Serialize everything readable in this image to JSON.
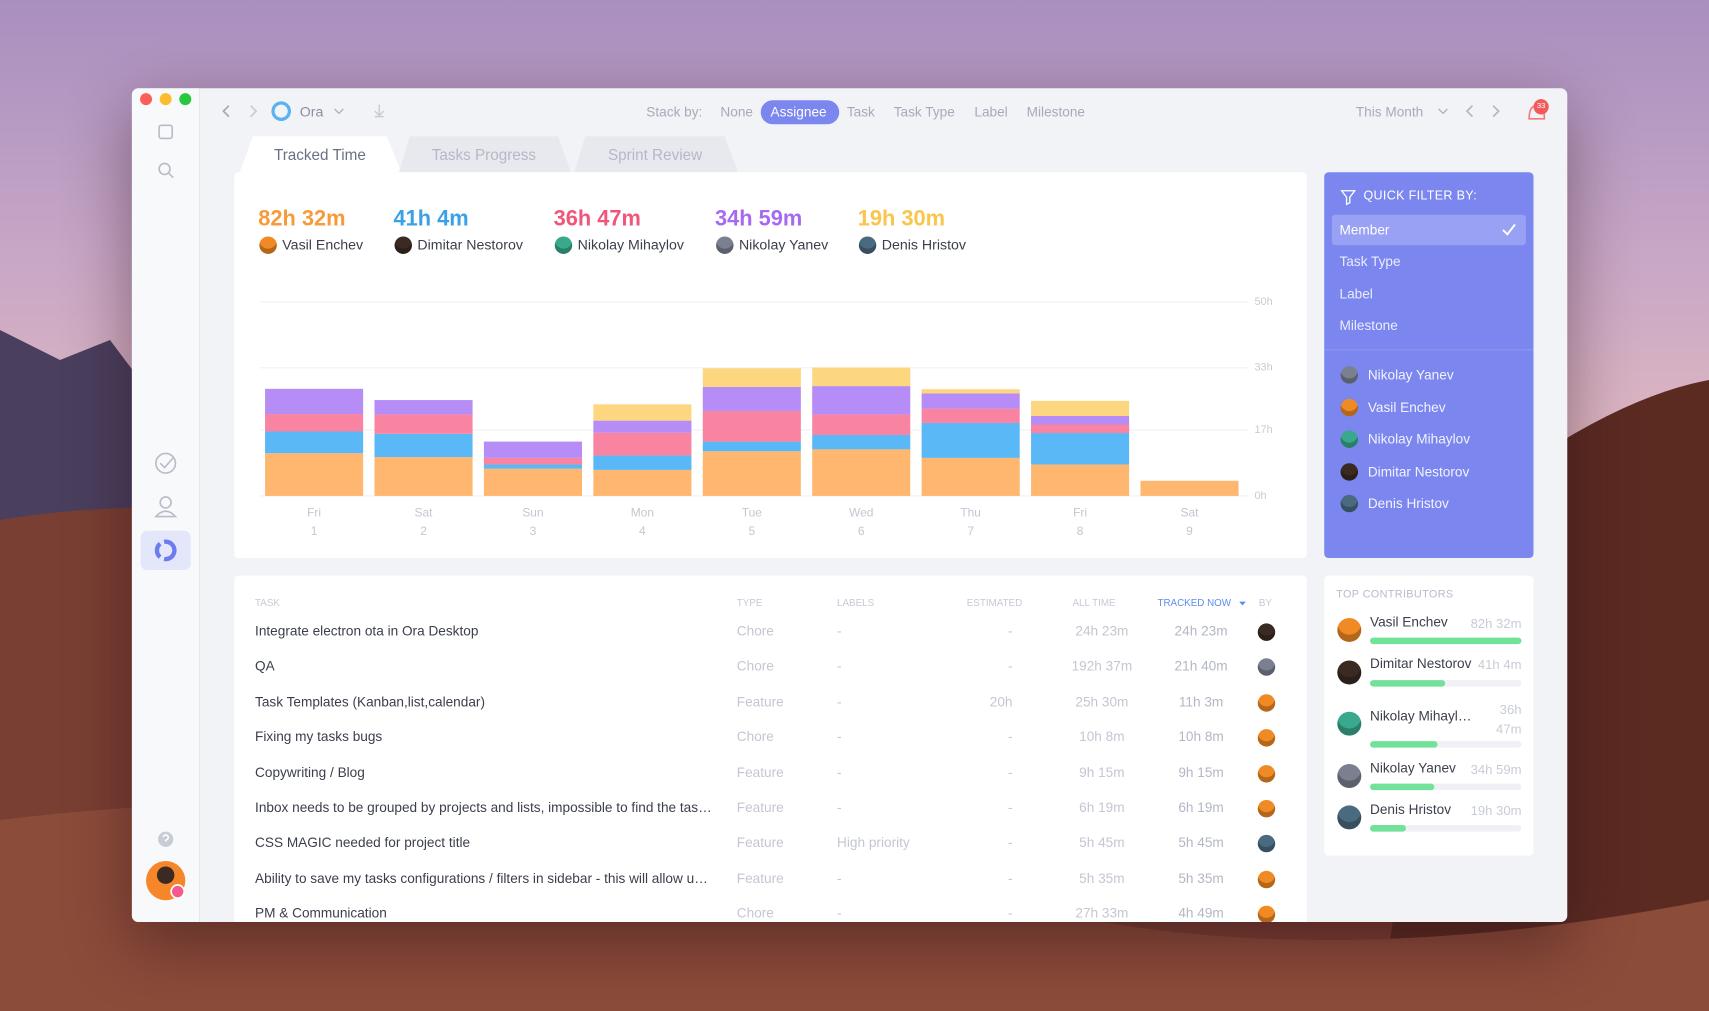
{
  "toolbar": {
    "app": "Ora",
    "stack_by_label": "Stack by:",
    "stack_options": [
      "None",
      "Assignee",
      "Task",
      "Task Type",
      "Label",
      "Milestone"
    ],
    "stack_selected": 1,
    "range": "This Month",
    "notifications": "33"
  },
  "tabs": [
    "Tracked Time",
    "Tasks Progress",
    "Sprint Review"
  ],
  "totals": [
    {
      "time": "82h 32m",
      "name": "Vasil Enchev",
      "color": "#f89a3a"
    },
    {
      "time": "41h 4m",
      "name": "Dimitar Nestorov",
      "color": "#3aa0e8"
    },
    {
      "time": "36h 47m",
      "name": "Nikolay Mihaylov",
      "color": "#f0567a"
    },
    {
      "time": "34h 59m",
      "name": "Nikolay Yanev",
      "color": "#a66af0"
    },
    {
      "time": "19h 30m",
      "name": "Denis Hristov",
      "color": "#f9c54a"
    }
  ],
  "chart_data": {
    "type": "stacked_bar",
    "categories": [
      "Fri",
      "Sat",
      "Sun",
      "Mon",
      "Tue",
      "Wed",
      "Thu",
      "Fri",
      "Sat"
    ],
    "category_dates": [
      "1",
      "2",
      "3",
      "4",
      "5",
      "6",
      "7",
      "8",
      "9"
    ],
    "series": [
      {
        "color": "#ffb770",
        "values": [
          11,
          10,
          7,
          6.7,
          11.5,
          12,
          9.8,
          8.1,
          3.9
        ]
      },
      {
        "color": "#5ab8f7",
        "values": [
          5.6,
          6,
          1.1,
          3.7,
          2.5,
          3.7,
          9,
          8.1,
          0
        ]
      },
      {
        "color": "#f884a2",
        "values": [
          4.5,
          5,
          1.7,
          5.9,
          7.9,
          5.3,
          3.7,
          2.2,
          0
        ]
      },
      {
        "color": "#b68cf7",
        "values": [
          6.5,
          3.7,
          4.2,
          3.1,
          6.2,
          7.3,
          3.9,
          2.2,
          0
        ]
      },
      {
        "color": "#fdd680",
        "values": [
          0,
          0,
          0,
          4.2,
          4.8,
          4.8,
          1.1,
          3.9,
          0
        ]
      }
    ],
    "ylim": [
      0,
      50
    ],
    "yticks": [
      {
        "value": 0,
        "label": "0h"
      },
      {
        "value": 17,
        "label": "17h"
      },
      {
        "value": 33,
        "label": "33h"
      },
      {
        "value": 50,
        "label": "50h"
      }
    ],
    "grid": true
  },
  "filter": {
    "title": "QUICK FILTER BY:",
    "options": [
      "Member",
      "Task Type",
      "Label",
      "Milestone"
    ],
    "selected": 0,
    "members": [
      "Nikolay Yanev",
      "Vasil Enchev",
      "Nikolay Mihaylov",
      "Dimitar Nestorov",
      "Denis Hristov"
    ]
  },
  "table": {
    "columns": [
      "TASK",
      "TYPE",
      "LABELS",
      "ESTIMATED",
      "ALL TIME",
      "TRACKED NOW",
      "BY"
    ],
    "rows": [
      [
        "Integrate electron ota in Ora Desktop",
        "Chore",
        "-",
        "-",
        "24h 23m",
        "24h 23m"
      ],
      [
        "QA",
        "Chore",
        "-",
        "-",
        "192h 37m",
        "21h 40m"
      ],
      [
        "Task Templates (Kanban,list,calendar)",
        "Feature",
        "-",
        "20h",
        "25h 30m",
        "11h 3m"
      ],
      [
        "Fixing my tasks bugs",
        "Chore",
        "-",
        "-",
        "10h 8m",
        "10h 8m"
      ],
      [
        "Copywriting / Blog",
        "Feature",
        "-",
        "-",
        "9h 15m",
        "9h 15m"
      ],
      [
        "Inbox needs to be grouped by projects and lists, impossible to find the tas…",
        "Feature",
        "-",
        "-",
        "6h 19m",
        "6h 19m"
      ],
      [
        "CSS MAGIC needed for project title",
        "Feature",
        "High priority",
        "-",
        "5h 45m",
        "5h 45m"
      ],
      [
        "Ability to save my tasks configurations / filters in sidebar - this will allow u…",
        "Feature",
        "-",
        "-",
        "5h 35m",
        "5h 35m"
      ],
      [
        "PM & Communication",
        "Chore",
        "-",
        "-",
        "27h 33m",
        "4h 49m"
      ]
    ]
  },
  "contributors": {
    "title": "TOP CONTRIBUTORS",
    "items": [
      {
        "name": "Vasil Enchev",
        "time": "82h 32m"
      },
      {
        "name": "Dimitar Nestorov",
        "time": "41h 4m"
      },
      {
        "name": "Nikolay Mihayl…",
        "time": "36h 47m"
      },
      {
        "name": "Nikolay Yanev",
        "time": "34h 59m"
      },
      {
        "name": "Denis Hristov",
        "time": "19h 30m"
      }
    ]
  }
}
